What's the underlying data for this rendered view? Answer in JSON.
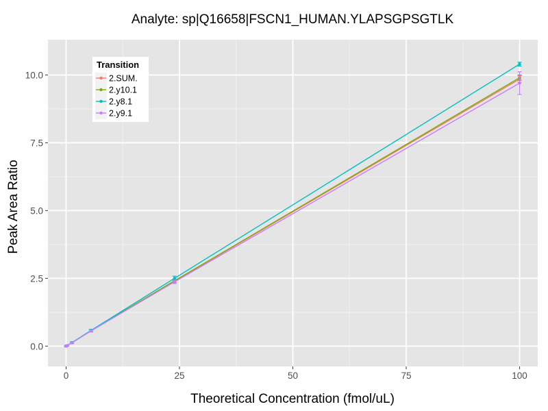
{
  "chart_data": {
    "type": "line",
    "title": "Analyte: sp|Q16658|FSCN1_HUMAN.YLAPSGPSGTLK",
    "xlabel": "Theoretical Concentration (fmol/uL)",
    "ylabel": "Peak Area Ratio",
    "xlim": [
      -4,
      104
    ],
    "ylim": [
      -0.75,
      11.3
    ],
    "xticks": [
      0,
      25,
      50,
      75,
      100
    ],
    "xtick_labels": [
      "0",
      "25",
      "50",
      "75",
      "100"
    ],
    "yticks": [
      0.0,
      2.5,
      5.0,
      7.5,
      10.0
    ],
    "ytick_labels": [
      "0.0",
      "2.5",
      "5.0",
      "7.5",
      "10.0"
    ],
    "grid": true,
    "legend": {
      "title": "Transition",
      "position": "top-left-inside"
    },
    "colors": {
      "panel": "#e5e5e5",
      "grid_major": "#ffffff",
      "grid_minor": "#f2f2f2"
    },
    "x": [
      0,
      0.2,
      1.3,
      5.5,
      23.9,
      100
    ],
    "series": [
      {
        "name": "2.SUM.",
        "color": "#F8766D",
        "values": [
          0.0,
          0.02,
          0.13,
          0.57,
          2.4,
          9.85
        ],
        "error": [
          0.02,
          0.02,
          0.03,
          0.04,
          0.06,
          0.12
        ]
      },
      {
        "name": "2.y10.1",
        "color": "#7CAE00",
        "values": [
          0.0,
          0.02,
          0.13,
          0.57,
          2.41,
          9.9
        ],
        "error": [
          0.02,
          0.02,
          0.03,
          0.04,
          0.06,
          0.1
        ]
      },
      {
        "name": "2.y8.1",
        "color": "#00BFC4",
        "values": [
          0.0,
          0.02,
          0.13,
          0.58,
          2.5,
          10.4
        ],
        "error": [
          0.02,
          0.02,
          0.03,
          0.04,
          0.08,
          0.07
        ]
      },
      {
        "name": "2.y9.1",
        "color": "#C77CFF",
        "values": [
          0.0,
          0.02,
          0.12,
          0.56,
          2.37,
          9.7
        ],
        "error": [
          0.02,
          0.02,
          0.03,
          0.04,
          0.06,
          0.42
        ]
      }
    ]
  }
}
